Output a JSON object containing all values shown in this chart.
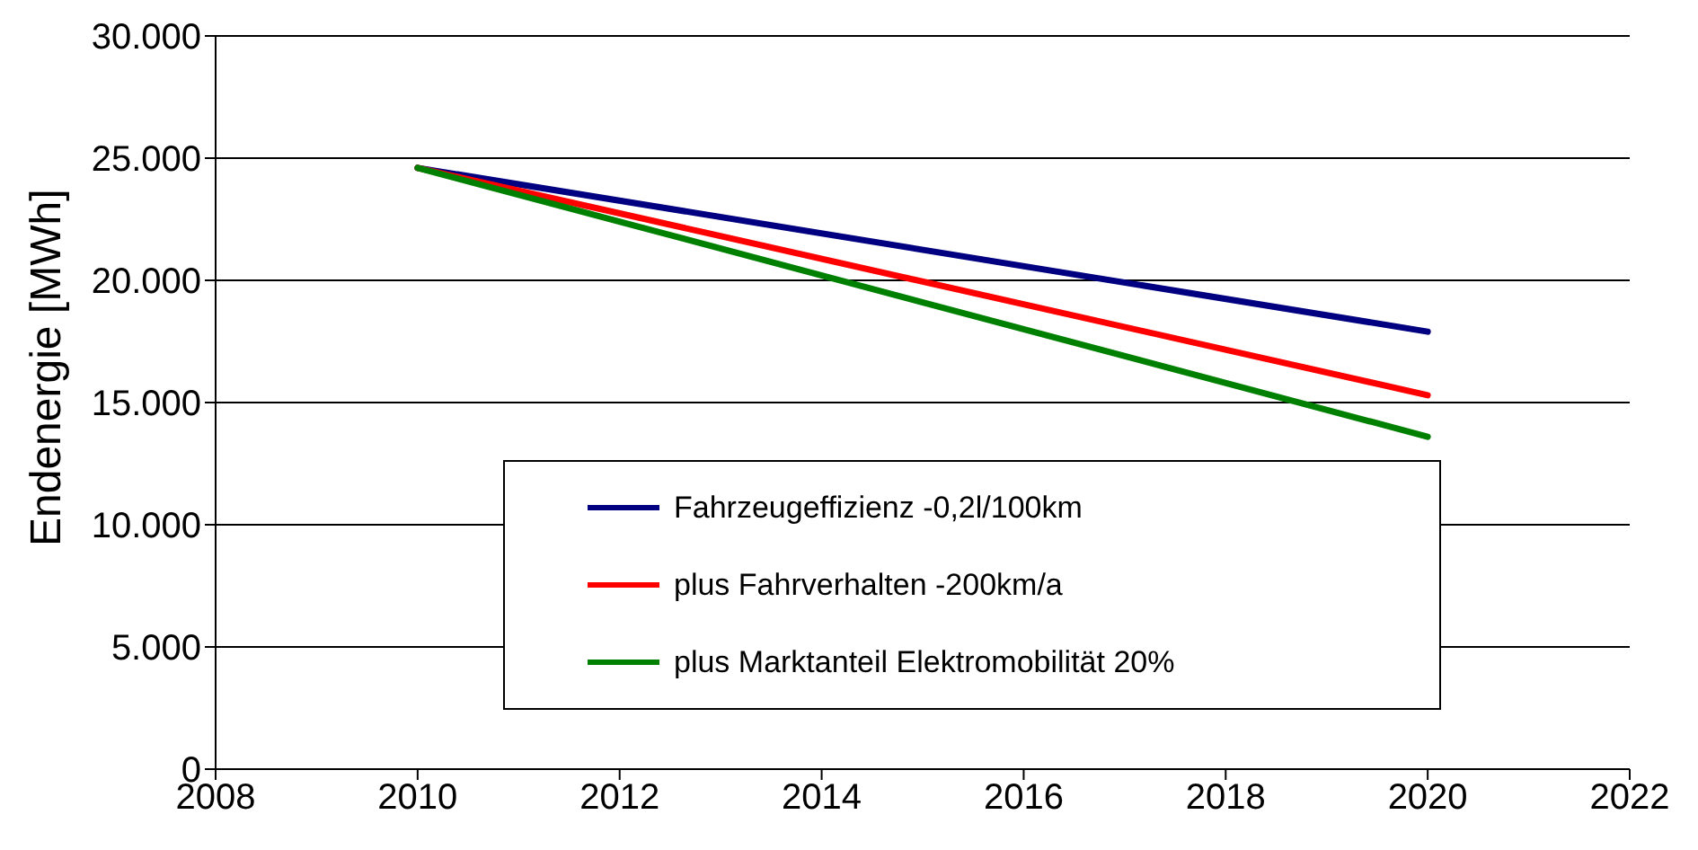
{
  "chart_data": {
    "type": "line",
    "ylabel": "Endenergie [MWh]",
    "x": [
      2010,
      2020
    ],
    "series": [
      {
        "name": "Fahrzeugeffizienz -0,2l/100km",
        "color": "#000080",
        "values": [
          24600,
          17900
        ]
      },
      {
        "name": "plus Fahrverhalten -200km/a",
        "color": "#ff0000",
        "values": [
          24600,
          15300
        ]
      },
      {
        "name": "plus Marktanteil Elektromobilität 20%",
        "color": "#008000",
        "values": [
          24600,
          13600
        ]
      }
    ],
    "xlim": [
      2008,
      2022
    ],
    "xticks": [
      2008,
      2010,
      2012,
      2014,
      2016,
      2018,
      2020,
      2022
    ],
    "ylim": [
      0,
      30000
    ],
    "yticks": [
      0,
      {
        "value": 5000,
        "label": "5.000"
      },
      {
        "value": 10000,
        "label": "10.000"
      },
      {
        "value": 15000,
        "label": "15.000"
      },
      {
        "value": 20000,
        "label": "20.000"
      },
      {
        "value": 25000,
        "label": "25.000"
      },
      {
        "value": 30000,
        "label": "30.000"
      }
    ],
    "grid": "y",
    "legend": "bottom",
    "marker": "none",
    "line_style": "solid"
  }
}
